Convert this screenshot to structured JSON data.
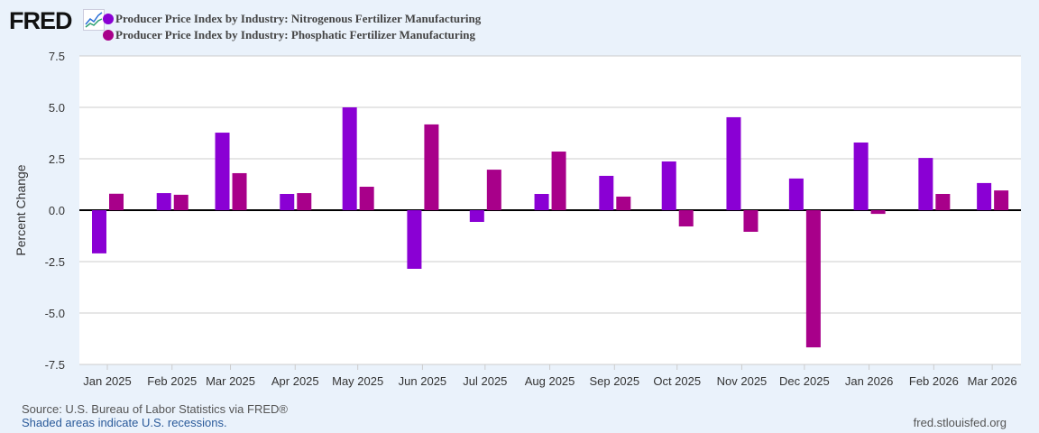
{
  "logo": "FRED",
  "footer": {
    "source": "Source: U.S. Bureau of Labor Statistics via FRED®",
    "recessions": "Shaded areas indicate U.S. recessions.",
    "site": "fred.stlouisfed.org"
  },
  "chart_data": {
    "type": "bar",
    "title": "",
    "xlabel": "",
    "ylabel": "Percent Change",
    "ylim": [
      -7.5,
      7.5
    ],
    "yticks": [
      "7.5",
      "5.0",
      "2.5",
      "0.0",
      "-2.5",
      "-5.0",
      "-7.5"
    ],
    "grid": true,
    "legend": "top",
    "categories": [
      "Jan 2025",
      "Feb 2025",
      "Mar 2025",
      "Apr 2025",
      "May 2025",
      "Jun 2025",
      "Jul 2025",
      "Aug 2025",
      "Sep 2025",
      "Oct 2025",
      "Nov 2025",
      "Dec 2025",
      "Jan 2026",
      "Feb 2026",
      "Mar 2026"
    ],
    "series": [
      {
        "name": "Producer Price Index by Industry: Nitrogenous Fertilizer Manufacturing",
        "color": "#8a00d4",
        "values": [
          -2.1,
          0.83,
          3.77,
          0.79,
          5.0,
          -2.85,
          -0.57,
          0.79,
          1.67,
          2.37,
          4.52,
          1.54,
          3.29,
          2.54,
          1.32
        ]
      },
      {
        "name": "Producer Price Index by Industry: Phosphatic Fertilizer Manufacturing",
        "color": "#a8008a",
        "values": [
          0.8,
          0.75,
          1.8,
          0.83,
          1.14,
          4.17,
          1.97,
          2.85,
          0.66,
          -0.79,
          -1.05,
          -6.67,
          -0.18,
          0.79,
          0.96
        ]
      }
    ]
  }
}
